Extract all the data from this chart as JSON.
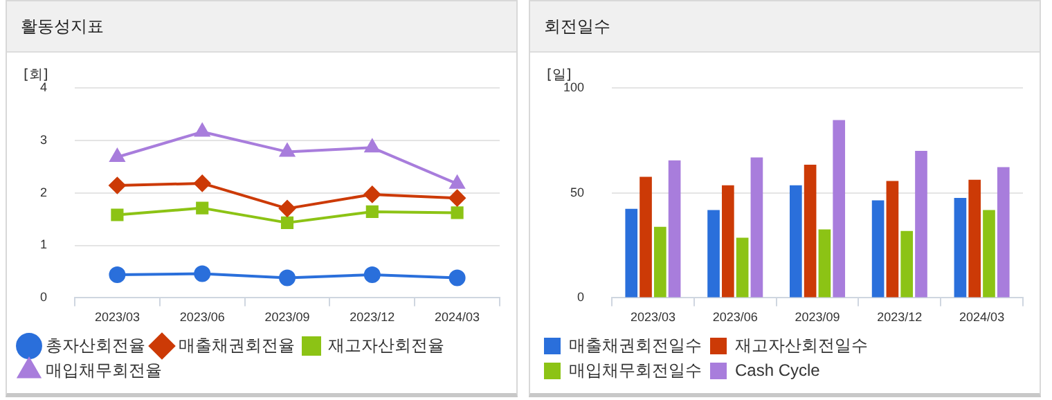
{
  "chart_data": [
    {
      "type": "line",
      "title": "활동성지표",
      "ylabel": "[회]",
      "categories": [
        "2023/03",
        "2023/06",
        "2023/09",
        "2023/12",
        "2024/03"
      ],
      "ylim": [
        0,
        4
      ],
      "yticks": [
        0,
        1,
        2,
        3,
        4
      ],
      "grid": "y",
      "legend": "bottom",
      "series": [
        {
          "name": "총자산회전율",
          "color": "#2a6fdb",
          "marker": "circle",
          "values": [
            0.44,
            0.46,
            0.38,
            0.44,
            0.38
          ]
        },
        {
          "name": "매출채권회전율",
          "color": "#cc3a06",
          "marker": "diamond",
          "values": [
            2.14,
            2.18,
            1.7,
            1.97,
            1.9
          ]
        },
        {
          "name": "재고자산회전율",
          "color": "#8cc315",
          "marker": "square",
          "values": [
            1.58,
            1.71,
            1.43,
            1.64,
            1.62
          ]
        },
        {
          "name": "매입채무회전율",
          "color": "#a87ddc",
          "marker": "triangle",
          "values": [
            2.68,
            3.16,
            2.78,
            2.86,
            2.17
          ]
        }
      ]
    },
    {
      "type": "bar",
      "title": "회전일수",
      "ylabel": "[일]",
      "categories": [
        "2023/03",
        "2023/06",
        "2023/09",
        "2023/12",
        "2024/03"
      ],
      "ylim": [
        0,
        100
      ],
      "yticks": [
        0,
        50,
        100
      ],
      "grid": "y",
      "legend": "bottom",
      "series": [
        {
          "name": "매출채권회전일수",
          "color": "#2a6fdb",
          "values": [
            42.4,
            41.8,
            53.6,
            46.4,
            47.6
          ]
        },
        {
          "name": "재고자산회전일수",
          "color": "#cc3a06",
          "values": [
            57.6,
            53.6,
            63.4,
            55.6,
            56.2
          ]
        },
        {
          "name": "매입채무회전일수",
          "color": "#8cc315",
          "values": [
            33.8,
            28.6,
            32.6,
            31.8,
            41.8
          ]
        },
        {
          "name": "Cash Cycle",
          "color": "#a87ddc",
          "values": [
            65.4,
            66.8,
            84.6,
            70,
            62.2
          ]
        }
      ]
    }
  ]
}
